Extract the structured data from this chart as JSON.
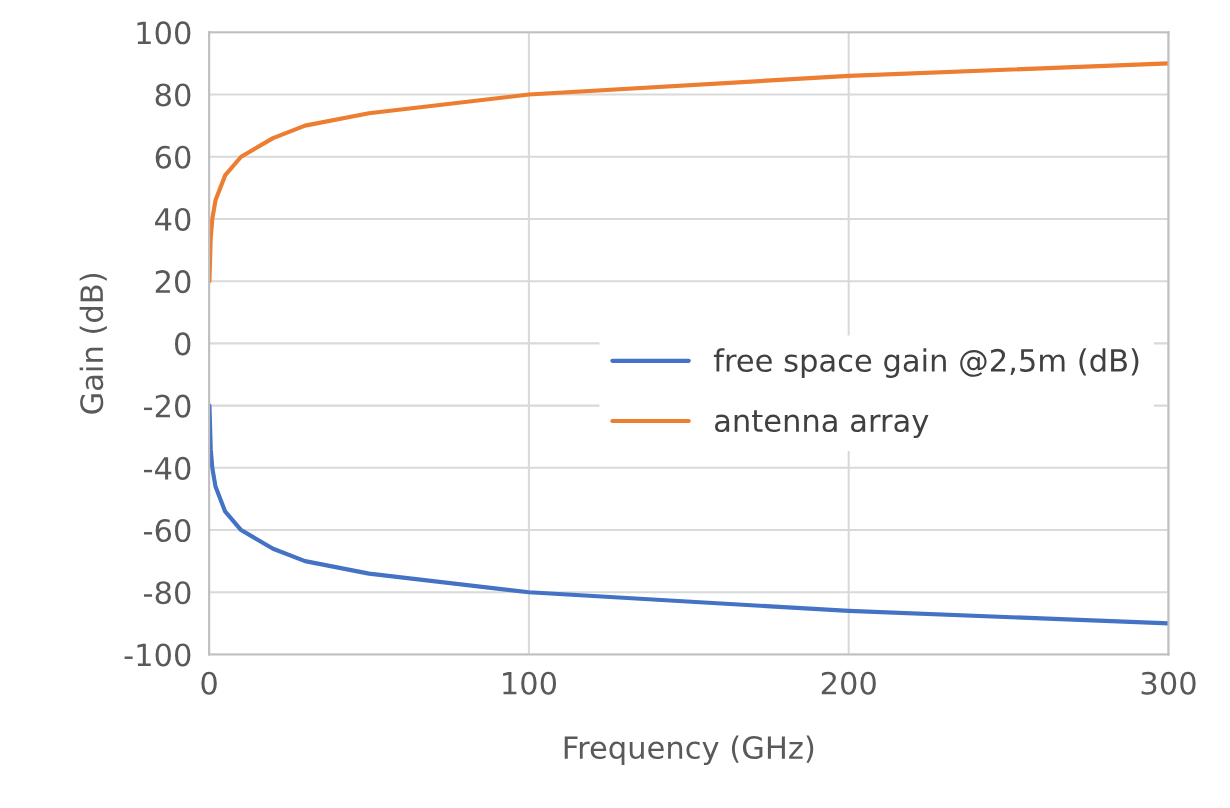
{
  "chart_data": {
    "type": "line",
    "xlabel": "Frequency (GHz)",
    "ylabel": "Gain (dB)",
    "x": [
      0.1,
      0.5,
      1,
      2,
      5,
      10,
      20,
      30,
      50,
      100,
      200,
      300
    ],
    "series": [
      {
        "name": "free space gain @2,5m (dB)",
        "color": "#4472c4",
        "values": [
          -20,
          -34,
          -40,
          -46,
          -54,
          -60,
          -66,
          -70,
          -74,
          -80,
          -86,
          -90
        ]
      },
      {
        "name": "antenna array",
        "color": "#ed7d31",
        "values": [
          20,
          34,
          40,
          46,
          54,
          60,
          66,
          70,
          74,
          80,
          86,
          90
        ]
      }
    ],
    "xlim": [
      0,
      300
    ],
    "xticks": [
      0,
      100,
      200,
      300
    ],
    "ylim": [
      -100,
      100
    ],
    "yticks": [
      -100,
      -80,
      -60,
      -40,
      -20,
      0,
      20,
      40,
      60,
      80,
      100
    ],
    "grid": true,
    "legend": "right",
    "marker": "none",
    "line_style": "solid"
  }
}
